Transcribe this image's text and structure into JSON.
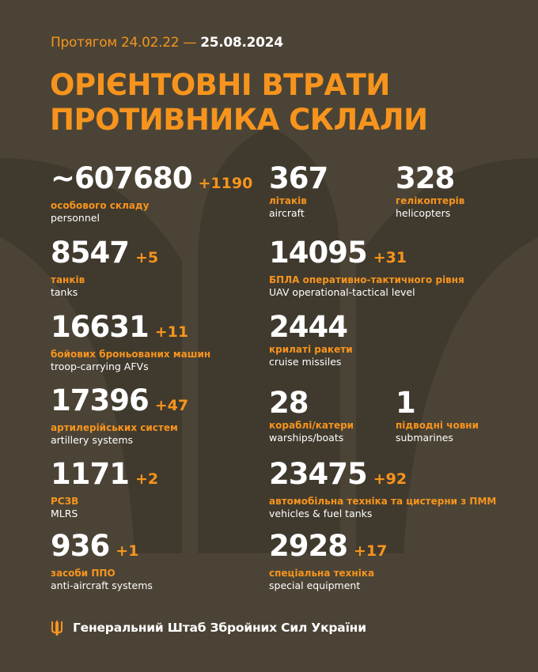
{
  "colors": {
    "background": "#4b4436",
    "silhouette": "#403a2e",
    "accent": "#f7941d",
    "text": "#ffffff"
  },
  "header": {
    "period_prefix": "Протягом 24.02.22 —",
    "period_date": "25.08.2024",
    "title_line1": "ОРІЄНТОВНІ ВТРАТИ",
    "title_line2": "ПРОТИВНИКА СКЛАЛИ"
  },
  "stats": [
    {
      "value": "~607680",
      "delta": "+1190",
      "ua": "особового складу",
      "en": "personnel"
    },
    {
      "value": "367",
      "delta": "",
      "ua": "літаків",
      "en": "aircraft"
    },
    {
      "value": "328",
      "delta": "",
      "ua": "гелікоптерів",
      "en": "helicopters"
    },
    {
      "value": "8547",
      "delta": "+5",
      "ua": "танків",
      "en": "tanks"
    },
    {
      "value": "14095",
      "delta": "+31",
      "ua": "БПЛА оперативно-тактичного рівня",
      "en": "UAV operational-tactical level"
    },
    {
      "value": "16631",
      "delta": "+11",
      "ua": "бойових броньованих машин",
      "en": "troop-carrying AFVs"
    },
    {
      "value": "2444",
      "delta": "",
      "ua": "крилаті ракети",
      "en": "cruise missiles"
    },
    {
      "value": "17396",
      "delta": "+47",
      "ua": "артилерійських систем",
      "en": "artillery systems"
    },
    {
      "value": "28",
      "delta": "",
      "ua": "кораблі/катери",
      "en": "warships/boats"
    },
    {
      "value": "1",
      "delta": "",
      "ua": "підводні човни",
      "en": "submarines"
    },
    {
      "value": "1171",
      "delta": "+2",
      "ua": "РСЗВ",
      "en": "MLRS"
    },
    {
      "value": "23475",
      "delta": "+92",
      "ua": "автомобільна техніка та цистерни з ПММ",
      "en": "vehicles & fuel tanks"
    },
    {
      "value": "936",
      "delta": "+1",
      "ua": "засоби ППО",
      "en": "anti-aircraft systems"
    },
    {
      "value": "2928",
      "delta": "+17",
      "ua": "спеціальна техніка",
      "en": "special equipment"
    }
  ],
  "footer": {
    "icon": "trident-icon",
    "text": "Генеральний Штаб Збройних Сил України"
  }
}
